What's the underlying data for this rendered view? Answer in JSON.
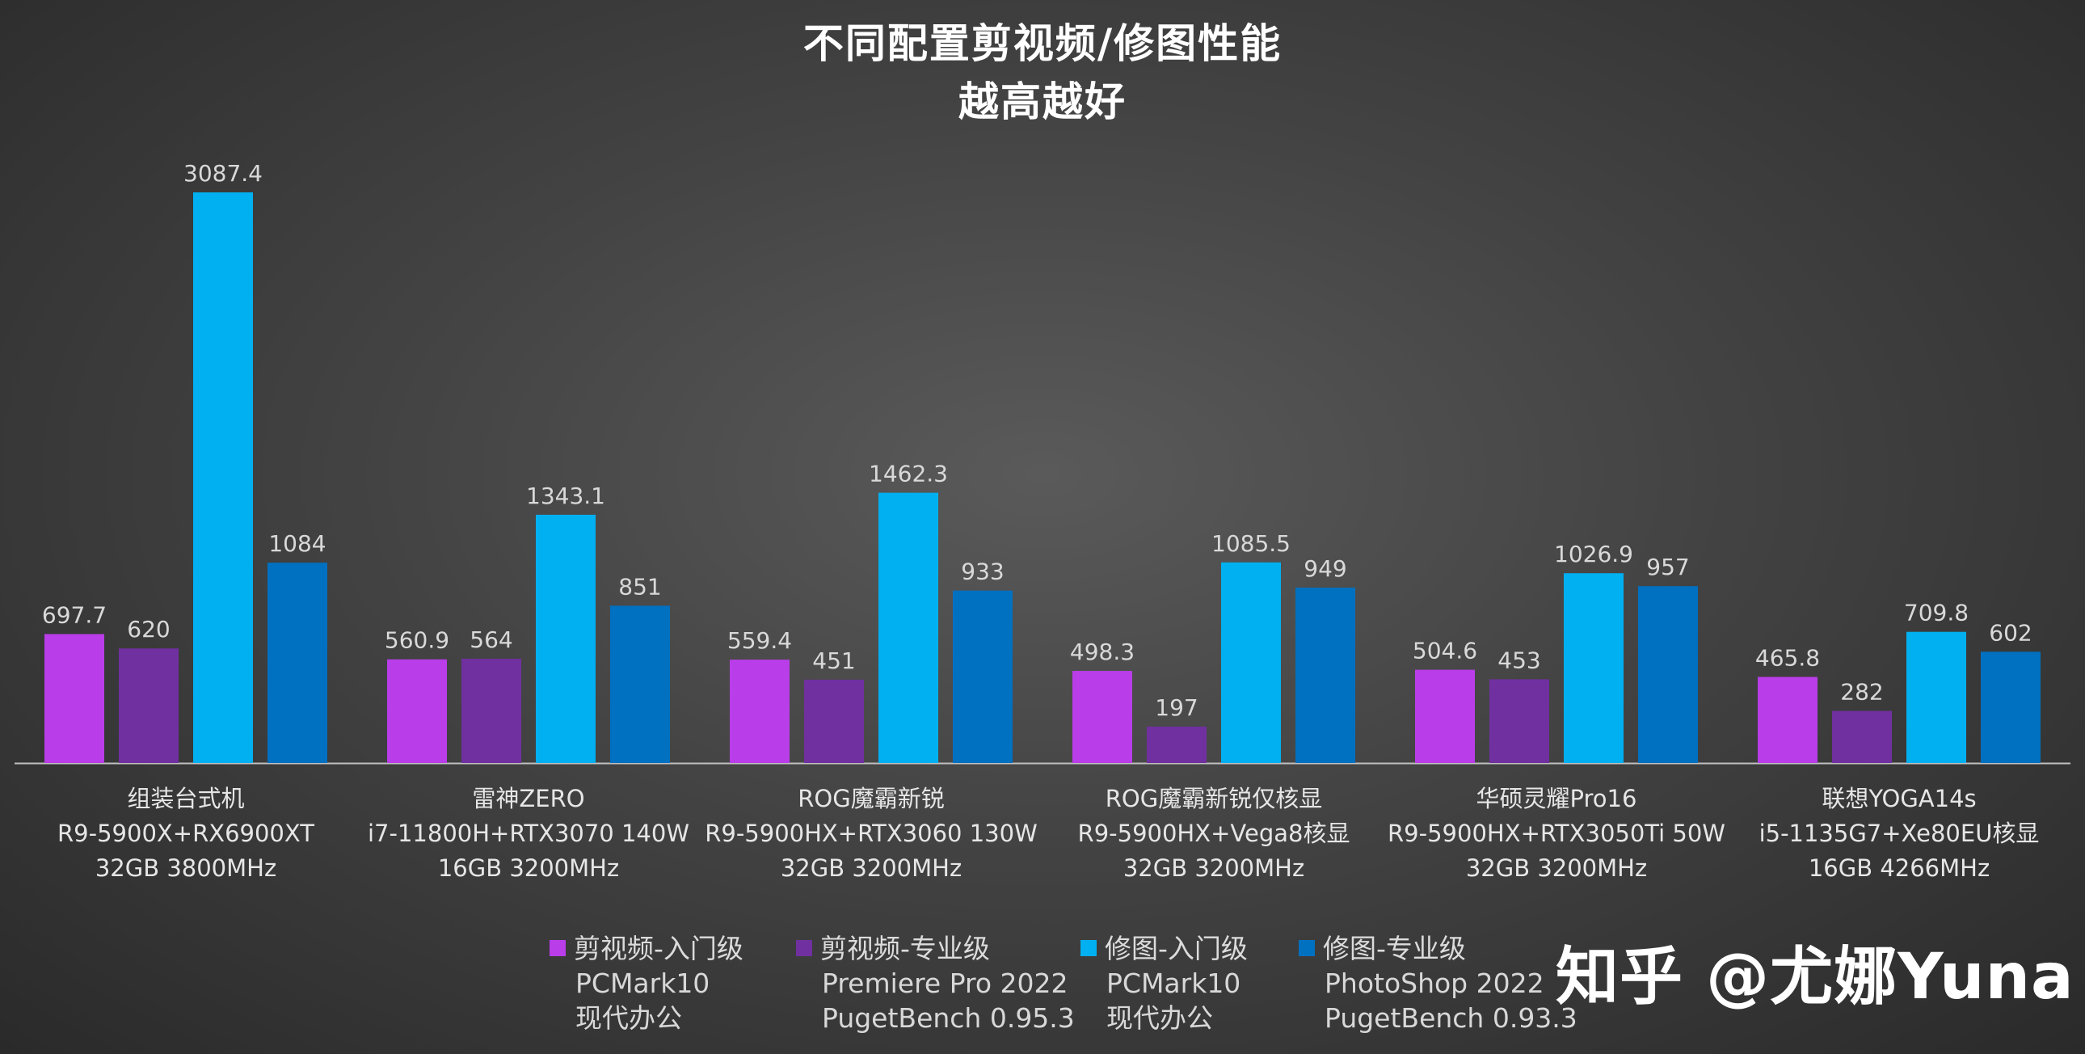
{
  "title": "不同配置剪视频/修图性能",
  "subtitle": "越高越好",
  "watermark": "知乎 @尤娜Yuna",
  "chart_data": {
    "type": "bar",
    "title": "不同配置剪视频/修图性能",
    "subtitle": "越高越好",
    "categories": [
      {
        "name": "组装台式机",
        "cpu": "R9-5900X+RX6900XT",
        "mem": "32GB 3800MHz"
      },
      {
        "name": "雷神ZERO",
        "cpu": "i7-11800H+RTX3070 140W",
        "mem": "16GB 3200MHz"
      },
      {
        "name": "ROG魔霸新锐",
        "cpu": "R9-5900HX+RTX3060 130W",
        "mem": "32GB 3200MHz"
      },
      {
        "name": "ROG魔霸新锐仅核显",
        "cpu": "R9-5900HX+Vega8核显",
        "mem": "32GB 3200MHz"
      },
      {
        "name": "华硕灵耀Pro16",
        "cpu": "R9-5900HX+RTX3050Ti 50W",
        "mem": "32GB 3200MHz"
      },
      {
        "name": "联想YOGA14s",
        "cpu": "i5-1135G7+Xe80EU核显",
        "mem": "16GB 4266MHz"
      }
    ],
    "series": [
      {
        "name": "剪视频-入门级",
        "notes": [
          "PCMark10",
          "现代办公"
        ],
        "color": "#B93DE8",
        "values": [
          697.7,
          560.9,
          559.4,
          498.3,
          504.6,
          465.8
        ],
        "labels": [
          "697.7",
          "560.9",
          "559.4",
          "498.3",
          "504.6",
          "465.8"
        ]
      },
      {
        "name": "剪视频-专业级",
        "notes": [
          "Premiere Pro 2022",
          "PugetBench 0.95.3"
        ],
        "color": "#7030A0",
        "values": [
          620,
          564,
          451,
          197,
          453,
          282
        ],
        "labels": [
          "620",
          "564",
          "451",
          "197",
          "453",
          "282"
        ]
      },
      {
        "name": "修图-入门级",
        "notes": [
          "PCMark10",
          "现代办公"
        ],
        "color": "#00B0F0",
        "values": [
          3087.4,
          1343.1,
          1462.3,
          1085.5,
          1026.9,
          709.8
        ],
        "labels": [
          "3087.4",
          "1343.1",
          "1462.3",
          "1085.5",
          "1026.9",
          "709.8"
        ]
      },
      {
        "name": "修图-专业级",
        "notes": [
          "PhotoShop 2022",
          "PugetBench 0.93.3"
        ],
        "color": "#0070C0",
        "values": [
          1084,
          851,
          933,
          949,
          957,
          602
        ],
        "labels": [
          "1084",
          "851",
          "933",
          "949",
          "957",
          "602"
        ]
      }
    ],
    "ylim": [
      0,
      3087.4
    ],
    "grid": false,
    "legend_position": "bottom"
  }
}
